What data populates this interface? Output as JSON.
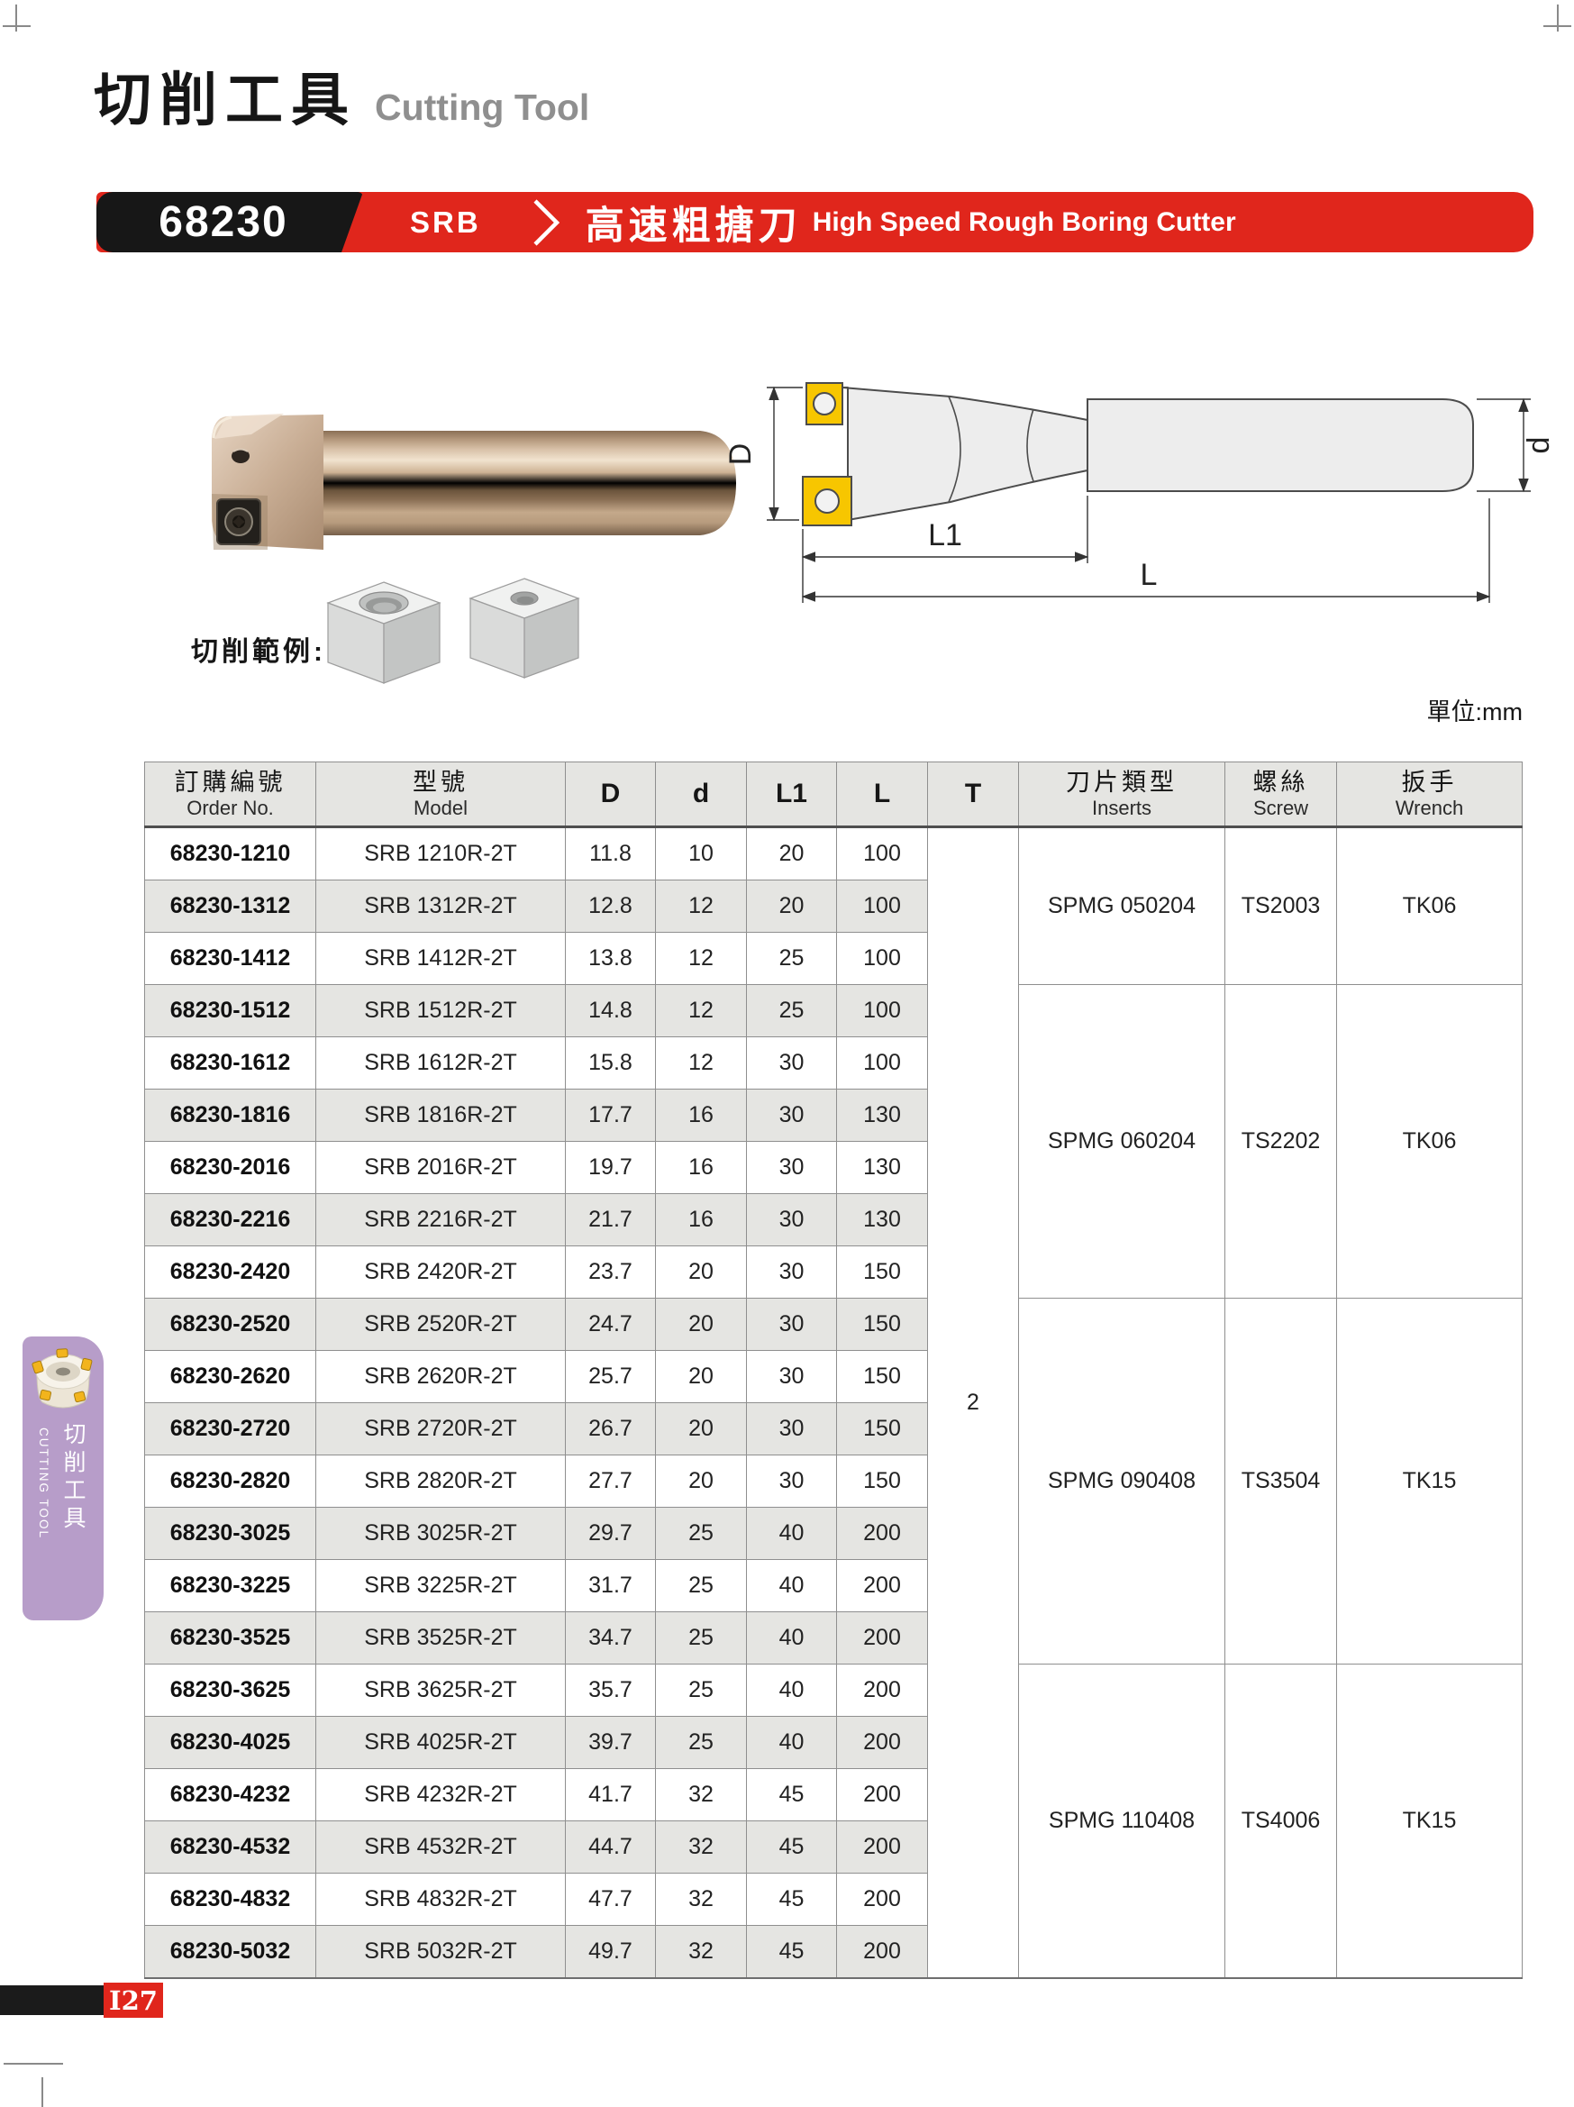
{
  "page": {
    "title_zh": "切削工具",
    "title_en": "Cutting Tool",
    "unit_label": "單位:mm",
    "cutting_example_label": "切削範例:",
    "page_number": "I27"
  },
  "banner": {
    "model_number": "68230",
    "series": "SRB",
    "name_zh": "高速粗搪刀",
    "name_en": "High Speed Rough Boring Cutter",
    "red": "#e0261c",
    "black": "#171717"
  },
  "drawing_labels": {
    "D": "D",
    "d": "d",
    "L1": "L1",
    "L": "L"
  },
  "sidebar": {
    "tab_zh": "切削工具",
    "tab_en": "CUTTING TOOL",
    "color": "#b79dc9"
  },
  "table": {
    "headers": {
      "order": {
        "zh": "訂購編號",
        "en": "Order No."
      },
      "model": {
        "zh": "型號",
        "en": "Model"
      },
      "D": "D",
      "d": "d",
      "L1": "L1",
      "L": "L",
      "T": "T",
      "inserts": {
        "zh": "刀片類型",
        "en": "Inserts"
      },
      "screw": {
        "zh": "螺絲",
        "en": "Screw"
      },
      "wrench": {
        "zh": "扳手",
        "en": "Wrench"
      }
    },
    "t_value": "2",
    "rows": [
      {
        "order": "68230-1210",
        "model": "SRB 1210R-2T",
        "D": "11.8",
        "d": "10",
        "L1": "20",
        "L": "100"
      },
      {
        "order": "68230-1312",
        "model": "SRB 1312R-2T",
        "D": "12.8",
        "d": "12",
        "L1": "20",
        "L": "100"
      },
      {
        "order": "68230-1412",
        "model": "SRB 1412R-2T",
        "D": "13.8",
        "d": "12",
        "L1": "25",
        "L": "100"
      },
      {
        "order": "68230-1512",
        "model": "SRB 1512R-2T",
        "D": "14.8",
        "d": "12",
        "L1": "25",
        "L": "100"
      },
      {
        "order": "68230-1612",
        "model": "SRB 1612R-2T",
        "D": "15.8",
        "d": "12",
        "L1": "30",
        "L": "100"
      },
      {
        "order": "68230-1816",
        "model": "SRB 1816R-2T",
        "D": "17.7",
        "d": "16",
        "L1": "30",
        "L": "130"
      },
      {
        "order": "68230-2016",
        "model": "SRB 2016R-2T",
        "D": "19.7",
        "d": "16",
        "L1": "30",
        "L": "130"
      },
      {
        "order": "68230-2216",
        "model": "SRB 2216R-2T",
        "D": "21.7",
        "d": "16",
        "L1": "30",
        "L": "130"
      },
      {
        "order": "68230-2420",
        "model": "SRB 2420R-2T",
        "D": "23.7",
        "d": "20",
        "L1": "30",
        "L": "150"
      },
      {
        "order": "68230-2520",
        "model": "SRB 2520R-2T",
        "D": "24.7",
        "d": "20",
        "L1": "30",
        "L": "150"
      },
      {
        "order": "68230-2620",
        "model": "SRB 2620R-2T",
        "D": "25.7",
        "d": "20",
        "L1": "30",
        "L": "150"
      },
      {
        "order": "68230-2720",
        "model": "SRB 2720R-2T",
        "D": "26.7",
        "d": "20",
        "L1": "30",
        "L": "150"
      },
      {
        "order": "68230-2820",
        "model": "SRB 2820R-2T",
        "D": "27.7",
        "d": "20",
        "L1": "30",
        "L": "150"
      },
      {
        "order": "68230-3025",
        "model": "SRB 3025R-2T",
        "D": "29.7",
        "d": "25",
        "L1": "40",
        "L": "200"
      },
      {
        "order": "68230-3225",
        "model": "SRB 3225R-2T",
        "D": "31.7",
        "d": "25",
        "L1": "40",
        "L": "200"
      },
      {
        "order": "68230-3525",
        "model": "SRB 3525R-2T",
        "D": "34.7",
        "d": "25",
        "L1": "40",
        "L": "200"
      },
      {
        "order": "68230-3625",
        "model": "SRB 3625R-2T",
        "D": "35.7",
        "d": "25",
        "L1": "40",
        "L": "200"
      },
      {
        "order": "68230-4025",
        "model": "SRB 4025R-2T",
        "D": "39.7",
        "d": "25",
        "L1": "40",
        "L": "200"
      },
      {
        "order": "68230-4232",
        "model": "SRB 4232R-2T",
        "D": "41.7",
        "d": "32",
        "L1": "45",
        "L": "200"
      },
      {
        "order": "68230-4532",
        "model": "SRB 4532R-2T",
        "D": "44.7",
        "d": "32",
        "L1": "45",
        "L": "200"
      },
      {
        "order": "68230-4832",
        "model": "SRB 4832R-2T",
        "D": "47.7",
        "d": "32",
        "L1": "45",
        "L": "200"
      },
      {
        "order": "68230-5032",
        "model": "SRB 5032R-2T",
        "D": "49.7",
        "d": "32",
        "L1": "45",
        "L": "200"
      }
    ],
    "insert_groups": [
      {
        "start": 0,
        "span": 3,
        "inserts": "SPMG 050204",
        "screw": "TS2003",
        "wrench": "TK06"
      },
      {
        "start": 3,
        "span": 6,
        "inserts": "SPMG 060204",
        "screw": "TS2202",
        "wrench": "TK06"
      },
      {
        "start": 9,
        "span": 7,
        "inserts": "SPMG 090408",
        "screw": "TS3504",
        "wrench": "TK15"
      },
      {
        "start": 16,
        "span": 6,
        "inserts": "SPMG 110408",
        "screw": "TS4006",
        "wrench": "TK15"
      }
    ]
  }
}
